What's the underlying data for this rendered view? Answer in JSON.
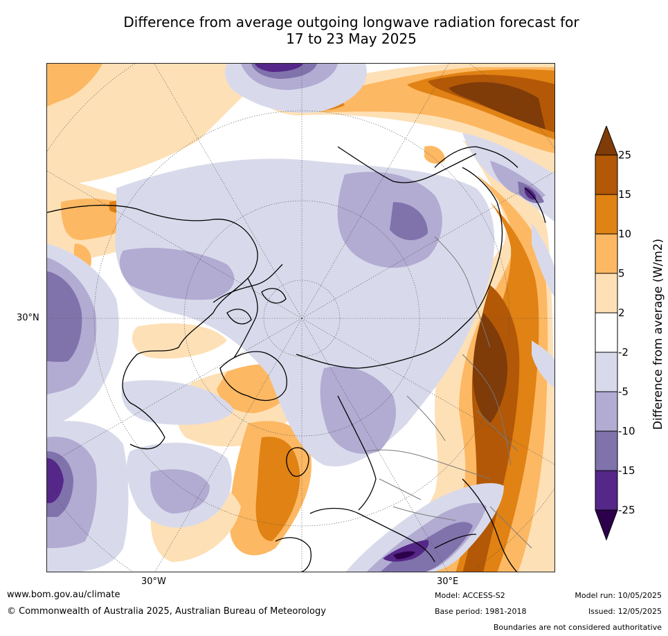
{
  "title_line1": "Difference from average outgoing longwave radiation forecast for",
  "title_line2": "17 to 23 May 2025",
  "map": {
    "lat_label": "30°N",
    "lon_labels": [
      "30°W",
      "30°E"
    ]
  },
  "colorbar": {
    "title": "Difference from average (W/m2)",
    "ticks": [
      "25",
      "15",
      "10",
      "5",
      "2",
      "-2",
      "-5",
      "-10",
      "-15",
      "-25"
    ],
    "colors": {
      "above_25": "#7f3b08",
      "15_25": "#b35806",
      "10_15": "#e08214",
      "5_10": "#fdb863",
      "2_5": "#fee0b6",
      "neg2_2": "#ffffff",
      "neg5_neg2": "#d8daeb",
      "neg10_neg5": "#b2abd2",
      "neg15_neg10": "#8073ac",
      "neg25_neg15": "#542788",
      "below_neg25": "#2d004b"
    }
  },
  "footer": {
    "website": "www.bom.gov.au/climate",
    "copyright": "© Commonwealth of Australia 2025, Australian Bureau of Meteorology",
    "model": "Model: ACCESS-S2",
    "model_run": "Model run: 10/05/2025",
    "base_period": "Base period: 1981-2018",
    "issued": "Issued: 12/05/2025",
    "disclaimer": "Boundaries are not considered authoritative"
  }
}
